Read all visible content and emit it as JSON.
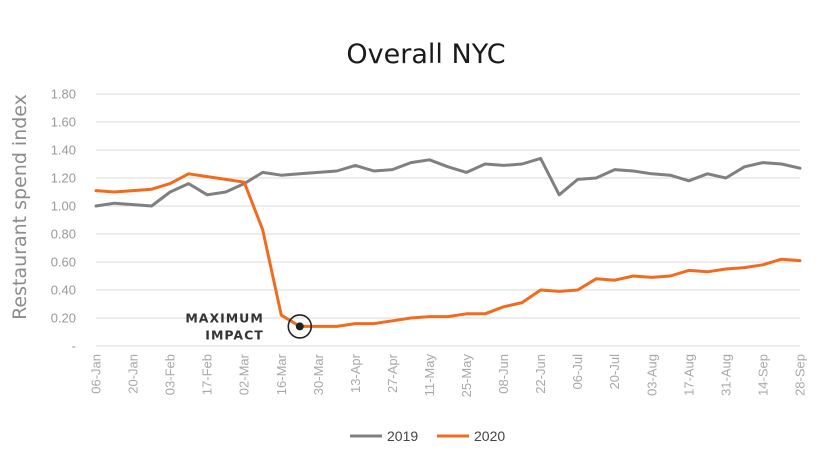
{
  "chart_data": {
    "type": "line",
    "title": "Overall NYC",
    "ylabel": "Restaurant spend index",
    "xlabel": "",
    "ylim": [
      0,
      1.8
    ],
    "y_ticks": [
      {
        "value": 0,
        "label": "-"
      },
      {
        "value": 0.2,
        "label": "0.20"
      },
      {
        "value": 0.4,
        "label": "0.40"
      },
      {
        "value": 0.6,
        "label": "0.60"
      },
      {
        "value": 0.8,
        "label": "0.80"
      },
      {
        "value": 1.0,
        "label": "1.00"
      },
      {
        "value": 1.2,
        "label": "1.20"
      },
      {
        "value": 1.4,
        "label": "1.40"
      },
      {
        "value": 1.6,
        "label": "1.60"
      },
      {
        "value": 1.8,
        "label": "1.80"
      }
    ],
    "grid": true,
    "legend_position": "bottom-center",
    "x": [
      "06-Jan",
      "13-Jan",
      "20-Jan",
      "27-Jan",
      "03-Feb",
      "10-Feb",
      "17-Feb",
      "24-Feb",
      "02-Mar",
      "09-Mar",
      "16-Mar",
      "23-Mar",
      "30-Mar",
      "06-Apr",
      "13-Apr",
      "20-Apr",
      "27-Apr",
      "04-May",
      "11-May",
      "18-May",
      "25-May",
      "01-Jun",
      "08-Jun",
      "15-Jun",
      "22-Jun",
      "29-Jun",
      "06-Jul",
      "13-Jul",
      "20-Jul",
      "27-Jul",
      "03-Aug",
      "10-Aug",
      "17-Aug",
      "24-Aug",
      "31-Aug",
      "07-Sep",
      "14-Sep",
      "21-Sep",
      "28-Sep"
    ],
    "x_tick_labels": [
      "06-Jan",
      "20-Jan",
      "03-Feb",
      "17-Feb",
      "02-Mar",
      "16-Mar",
      "30-Mar",
      "13-Apr",
      "27-Apr",
      "11-May",
      "25-May",
      "08-Jun",
      "22-Jun",
      "06-Jul",
      "20-Jul",
      "03-Aug",
      "17-Aug",
      "31-Aug",
      "14-Sep",
      "28-Sep"
    ],
    "series": [
      {
        "name": "2019",
        "color": "#808080",
        "values": [
          1.0,
          1.02,
          1.01,
          1.0,
          1.1,
          1.16,
          1.08,
          1.1,
          1.16,
          1.24,
          1.22,
          1.23,
          1.24,
          1.25,
          1.29,
          1.25,
          1.26,
          1.31,
          1.33,
          1.28,
          1.24,
          1.3,
          1.29,
          1.3,
          1.34,
          1.08,
          1.19,
          1.2,
          1.26,
          1.25,
          1.23,
          1.22,
          1.18,
          1.23,
          1.2,
          1.28,
          1.31,
          1.3,
          1.27
        ]
      },
      {
        "name": "2020",
        "color": "#F26B1D",
        "values": [
          1.11,
          1.1,
          1.11,
          1.12,
          1.16,
          1.23,
          1.21,
          1.19,
          1.17,
          0.83,
          0.22,
          0.14,
          0.14,
          0.14,
          0.16,
          0.16,
          0.18,
          0.2,
          0.21,
          0.21,
          0.23,
          0.23,
          0.28,
          0.31,
          0.4,
          0.39,
          0.4,
          0.48,
          0.47,
          0.5,
          0.49,
          0.5,
          0.54,
          0.53,
          0.55,
          0.56,
          0.58,
          0.62,
          0.61
        ]
      }
    ],
    "annotations": [
      {
        "text_lines": [
          "MAXIMUM",
          "IMPACT"
        ],
        "series": "2020",
        "x": "23-Mar",
        "y": 0.14
      }
    ]
  }
}
